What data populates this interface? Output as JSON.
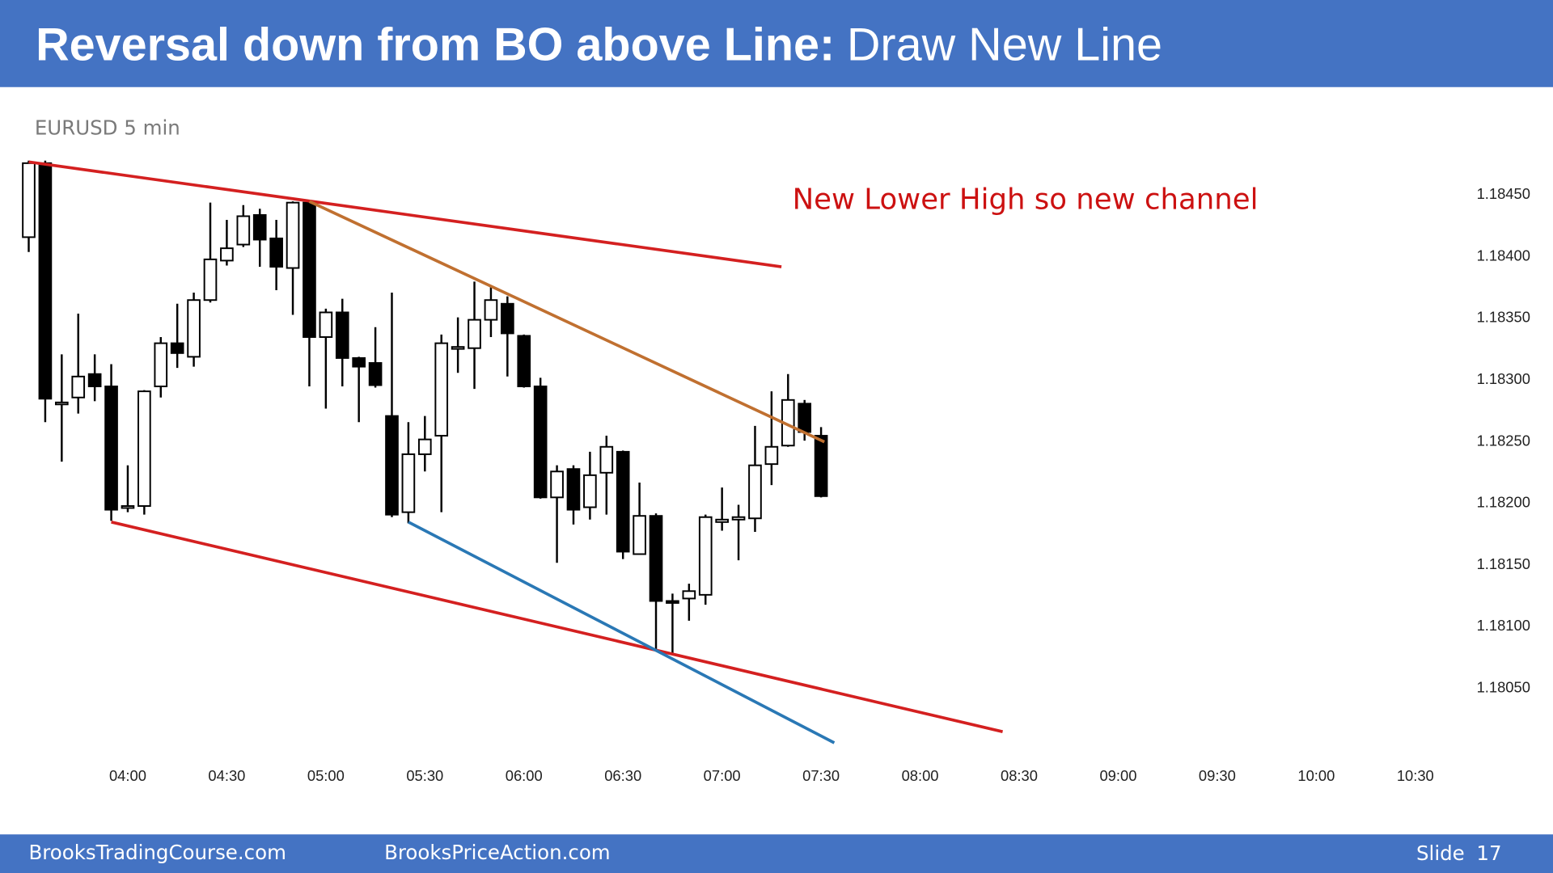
{
  "slide": {
    "title_main": "Reversal down from BO above Line:",
    "title_rest": "Draw New Line",
    "footer_left": "BrooksTradingCourse.com",
    "footer_center": "BrooksPriceAction.com",
    "slide_label": "Slide",
    "slide_number": 17
  },
  "chart_data": {
    "type": "candlestick",
    "title": "EURUSD 5 min",
    "annotation": "New Lower High so new channel",
    "x": [
      "03:30",
      "03:35",
      "03:40",
      "03:45",
      "03:50",
      "03:55",
      "04:00",
      "04:05",
      "04:10",
      "04:15",
      "04:20",
      "04:25",
      "04:30",
      "04:35",
      "04:40",
      "04:45",
      "04:50",
      "04:55",
      "05:00",
      "05:05",
      "05:10",
      "05:15",
      "05:20",
      "05:25",
      "05:30",
      "05:35",
      "05:40",
      "05:45",
      "05:50",
      "05:55",
      "06:00",
      "06:05",
      "06:10",
      "06:15",
      "06:20",
      "06:25",
      "06:30",
      "06:35",
      "06:40",
      "06:45",
      "06:50",
      "06:55",
      "07:00",
      "07:05",
      "07:10",
      "07:15",
      "07:20",
      "07:25",
      "07:30"
    ],
    "open": [
      1.18415,
      1.18475,
      1.1828,
      1.18285,
      1.18304,
      1.18294,
      1.18196,
      1.18197,
      1.18294,
      1.18329,
      1.18318,
      1.18364,
      1.18396,
      1.18409,
      1.18433,
      1.18414,
      1.1839,
      1.18443,
      1.18334,
      1.18354,
      1.18317,
      1.18313,
      1.1827,
      1.18192,
      1.18239,
      1.18254,
      1.18325,
      1.18325,
      1.18348,
      1.18361,
      1.18335,
      1.18294,
      1.18204,
      1.18227,
      1.18196,
      1.18224,
      1.18241,
      1.18158,
      1.18189,
      1.1812,
      1.18122,
      1.18125,
      1.18184,
      1.18186,
      1.18187,
      1.18231,
      1.18246,
      1.1828,
      1.18254
    ],
    "high": [
      1.18477,
      1.18477,
      1.1832,
      1.18353,
      1.1832,
      1.18312,
      1.1823,
      1.18291,
      1.18334,
      1.18361,
      1.1837,
      1.18443,
      1.18429,
      1.18441,
      1.18438,
      1.18429,
      1.18444,
      1.18444,
      1.18357,
      1.18365,
      1.18318,
      1.18342,
      1.1837,
      1.18265,
      1.1827,
      1.18336,
      1.1835,
      1.18379,
      1.18375,
      1.18367,
      1.18336,
      1.18301,
      1.1823,
      1.1823,
      1.18241,
      1.18254,
      1.18242,
      1.18216,
      1.18191,
      1.18126,
      1.18134,
      1.1819,
      1.18212,
      1.18198,
      1.18262,
      1.1829,
      1.18304,
      1.18283,
      1.18261
    ],
    "low": [
      1.18403,
      1.18265,
      1.18233,
      1.18272,
      1.18282,
      1.18185,
      1.18192,
      1.1819,
      1.18285,
      1.18309,
      1.1831,
      1.18362,
      1.18392,
      1.18407,
      1.18391,
      1.18372,
      1.18352,
      1.18294,
      1.18276,
      1.18294,
      1.18265,
      1.18293,
      1.18188,
      1.18183,
      1.18225,
      1.18192,
      1.18305,
      1.18292,
      1.18334,
      1.18302,
      1.18293,
      1.18203,
      1.18151,
      1.18182,
      1.18186,
      1.1819,
      1.18154,
      1.18158,
      1.18079,
      1.18077,
      1.18104,
      1.18117,
      1.18177,
      1.18153,
      1.18176,
      1.18214,
      1.18245,
      1.1825,
      1.18204
    ],
    "close": [
      1.18475,
      1.18284,
      1.18281,
      1.18302,
      1.18294,
      1.18194,
      1.18197,
      1.1829,
      1.18329,
      1.18321,
      1.18364,
      1.18397,
      1.18406,
      1.18432,
      1.18413,
      1.18391,
      1.18443,
      1.18334,
      1.18354,
      1.18317,
      1.1831,
      1.18295,
      1.1819,
      1.18239,
      1.18251,
      1.18329,
      1.18326,
      1.18348,
      1.18364,
      1.18337,
      1.18294,
      1.18204,
      1.18225,
      1.18194,
      1.18222,
      1.18245,
      1.1816,
      1.18189,
      1.1812,
      1.18119,
      1.18128,
      1.18188,
      1.18186,
      1.18188,
      1.1823,
      1.18245,
      1.18283,
      1.18257,
      1.18205
    ],
    "up_color": "#ffffff",
    "down_color": "#000000",
    "trendlines": [
      {
        "color": "#d42020",
        "x": [
          "03:30",
          "07:18"
        ],
        "y": [
          1.18476,
          1.18391
        ]
      },
      {
        "color": "#c07030",
        "x": [
          "04:55",
          "07:31"
        ],
        "y": [
          1.18444,
          1.18249
        ]
      },
      {
        "color": "#d42020",
        "x": [
          "03:55",
          "08:25"
        ],
        "y": [
          1.18184,
          1.18014
        ]
      },
      {
        "color": "#2a78b5",
        "x": [
          "05:25",
          "07:34"
        ],
        "y": [
          1.18184,
          1.18005
        ]
      }
    ],
    "xlim": [
      "03:25",
      "10:45"
    ],
    "xticks": [
      "04:00",
      "04:30",
      "05:00",
      "05:30",
      "06:00",
      "06:30",
      "07:00",
      "07:30",
      "08:00",
      "08:30",
      "09:00",
      "09:30",
      "10:00",
      "10:30"
    ],
    "ylim": [
      1.18,
      1.185
    ],
    "yticks": [
      {
        "value": 1.1805,
        "label": "1.18050"
      },
      {
        "value": 1.181,
        "label": "1.18100"
      },
      {
        "value": 1.1815,
        "label": "1.18150"
      },
      {
        "value": 1.182,
        "label": "1.18200"
      },
      {
        "value": 1.1825,
        "label": "1.18250"
      },
      {
        "value": 1.183,
        "label": "1.18300"
      },
      {
        "value": 1.1835,
        "label": "1.18350"
      },
      {
        "value": 1.184,
        "label": "1.18400"
      },
      {
        "value": 1.1845,
        "label": "1.18450"
      }
    ]
  }
}
